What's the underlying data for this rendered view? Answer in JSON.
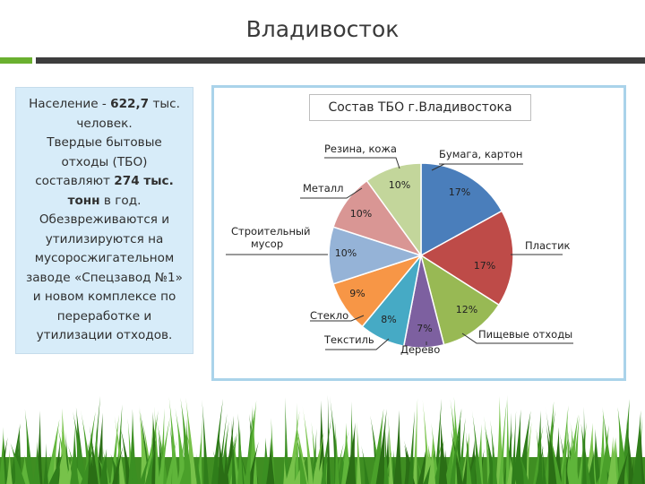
{
  "header": {
    "title": "Владивосток"
  },
  "info": {
    "l1a": "Население - ",
    "l1b": "622,7",
    "l1c": " тыс.",
    "l2": "человек.",
    "l3": "Твердые бытовые",
    "l4": "отходы (ТБО)",
    "l5a": "составляют ",
    "l5b": "274 тыс.",
    "l6a": "тонн",
    "l6b": " в год.",
    "l7": "Обезвреживаются и",
    "l8": "утилизируются на",
    "l9": "мусоросжигательном",
    "l10": "заводе «Спецзавод №1»",
    "l11": "и новом комплексе по",
    "l12": "переработке и",
    "l13": "утилизации отходов."
  },
  "chart_data": {
    "type": "pie",
    "title": "Состав ТБО г.Владивостока",
    "slices": [
      {
        "name": "Бумага, картон",
        "value": 17,
        "label": "17%",
        "color": "#4a7ebb"
      },
      {
        "name": "Пластик",
        "value": 17,
        "label": "17%",
        "color": "#be4b48"
      },
      {
        "name": "Пищевые отходы",
        "value": 12,
        "label": "12%",
        "color": "#98b954"
      },
      {
        "name": "Дерево",
        "value": 7,
        "label": "7%",
        "color": "#7d60a0"
      },
      {
        "name": "Текстиль",
        "value": 8,
        "label": "8%",
        "color": "#46aac5"
      },
      {
        "name": "Стекло",
        "value": 9,
        "label": "9%",
        "color": "#f79646"
      },
      {
        "name": "Строительный мусор",
        "value": 10,
        "label": "10%",
        "color": "#95b3d7"
      },
      {
        "name": "Металл",
        "value": 10,
        "label": "10%",
        "color": "#d99694"
      },
      {
        "name": "Резина, кожа",
        "value": 10,
        "label": "10%",
        "color": "#c3d69b"
      }
    ]
  }
}
